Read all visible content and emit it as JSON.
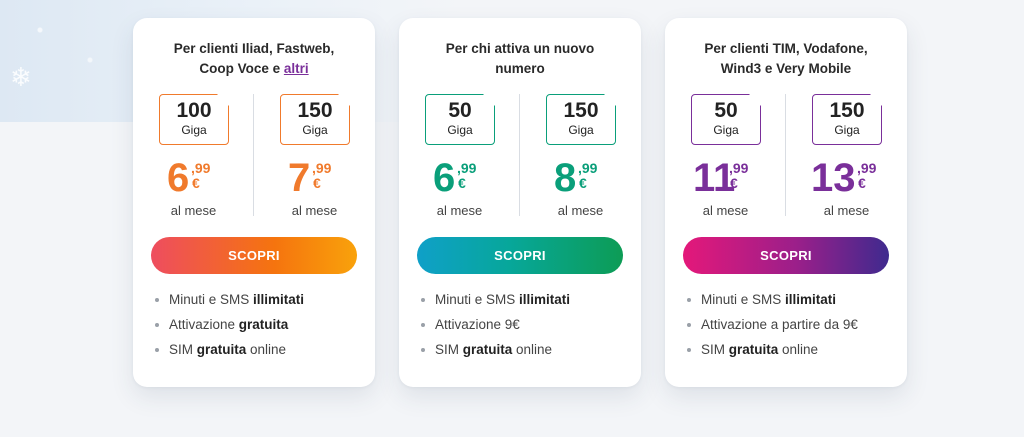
{
  "cards": [
    {
      "heading_lines": [
        "Per clienti Iliad, Fastweb,",
        "Coop Voce e "
      ],
      "heading_link": "altri",
      "accent": "#f07a2c",
      "plans": [
        {
          "giga": "100",
          "unit": "Giga",
          "price_int": "6",
          "price_dec": ",99",
          "currency": "€",
          "period": "al mese"
        },
        {
          "giga": "150",
          "unit": "Giga",
          "price_int": "7",
          "price_dec": ",99",
          "currency": "€",
          "period": "al mese"
        }
      ],
      "cta": "SCOPRI",
      "features": [
        {
          "pre": "Minuti e SMS ",
          "bold": "illimitati",
          "post": ""
        },
        {
          "pre": "Attivazione ",
          "bold": "gratuita",
          "post": ""
        },
        {
          "pre": "SIM ",
          "bold": "gratuita",
          "post": " online"
        }
      ]
    },
    {
      "heading_lines": [
        "Per chi attiva un nuovo",
        "numero"
      ],
      "heading_link": "",
      "accent": "#0a9f7a",
      "plans": [
        {
          "giga": "50",
          "unit": "Giga",
          "price_int": "6",
          "price_dec": ",99",
          "currency": "€",
          "period": "al mese"
        },
        {
          "giga": "150",
          "unit": "Giga",
          "price_int": "8",
          "price_dec": ",99",
          "currency": "€",
          "period": "al mese"
        }
      ],
      "cta": "SCOPRI",
      "features": [
        {
          "pre": "Minuti e SMS ",
          "bold": "illimitati",
          "post": ""
        },
        {
          "pre": "Attivazione 9€",
          "bold": "",
          "post": ""
        },
        {
          "pre": "SIM ",
          "bold": "gratuita",
          "post": " online"
        }
      ]
    },
    {
      "heading_lines": [
        "Per clienti TIM, Vodafone,",
        "Wind3 e Very Mobile"
      ],
      "heading_link": "",
      "accent": "#7a2f9a",
      "plans": [
        {
          "giga": "50",
          "unit": "Giga",
          "price_int": "11",
          "price_dec": ",99",
          "currency": "€",
          "period": "al mese"
        },
        {
          "giga": "150",
          "unit": "Giga",
          "price_int": "13",
          "price_dec": ",99",
          "currency": "€",
          "period": "al mese"
        }
      ],
      "cta": "SCOPRI",
      "features": [
        {
          "pre": "Minuti e SMS ",
          "bold": "illimitati",
          "post": ""
        },
        {
          "pre": "Attivazione a partire da 9€",
          "bold": "",
          "post": ""
        },
        {
          "pre": "SIM ",
          "bold": "gratuita",
          "post": " online"
        }
      ]
    }
  ]
}
